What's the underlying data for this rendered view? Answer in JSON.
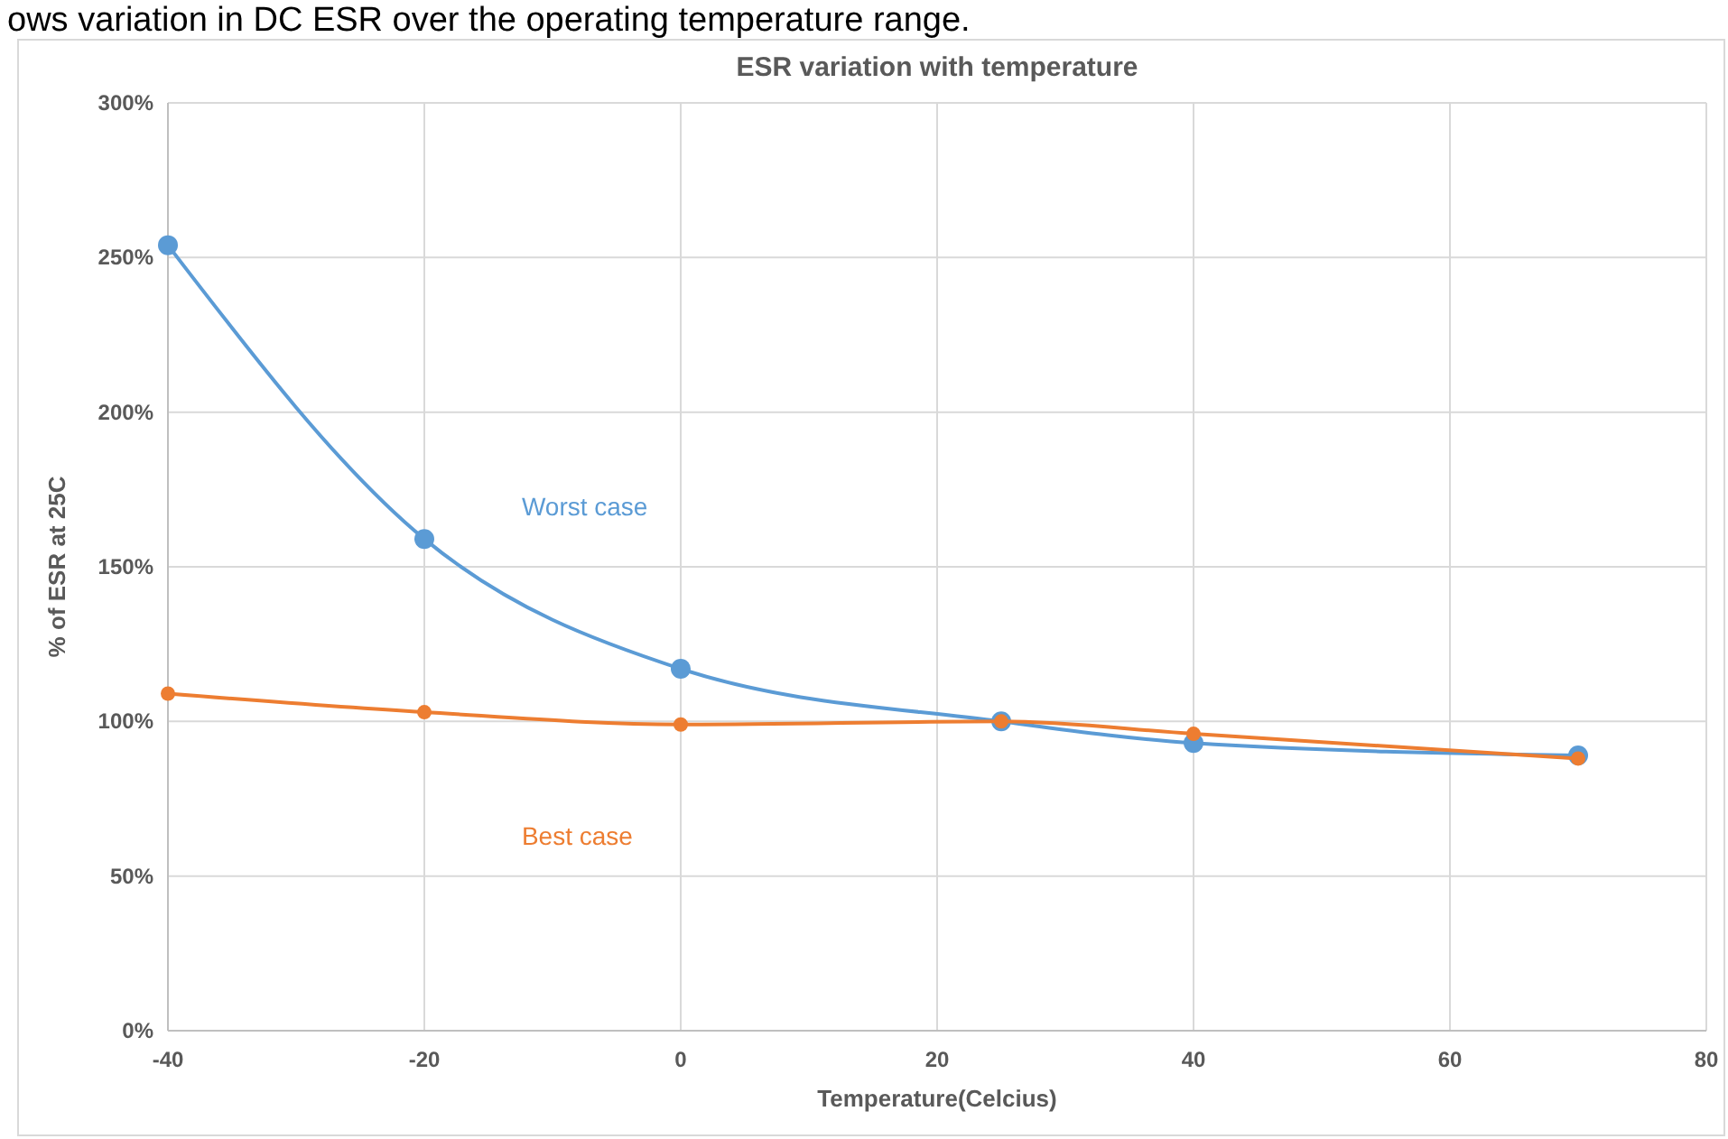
{
  "chart_data": {
    "type": "line",
    "title": "ESR variation with temperature",
    "xlabel": "Temperature(Celcius)",
    "ylabel": "% of ESR at 25C",
    "annotations": [
      "ows variation in DC ESR over the operating temperature range."
    ],
    "x": [
      -40,
      -20,
      0,
      25,
      40,
      70
    ],
    "series": [
      {
        "name": "Worst case",
        "color": "#5b9bd5",
        "values": [
          254,
          159,
          117,
          100,
          93,
          89
        ]
      },
      {
        "name": "Best case",
        "color": "#ed7d31",
        "values": [
          109,
          103,
          99,
          100,
          96,
          88
        ]
      }
    ],
    "xlim": [
      -40,
      80
    ],
    "xticks": [
      -40,
      -20,
      0,
      20,
      40,
      60,
      80
    ],
    "ylim": [
      0,
      300
    ],
    "yticks": [
      {
        "value": 0,
        "label": "0%"
      },
      {
        "value": 50,
        "label": "50%"
      },
      {
        "value": 100,
        "label": "100%"
      },
      {
        "value": 150,
        "label": "150%"
      },
      {
        "value": 200,
        "label": "200%"
      },
      {
        "value": 250,
        "label": "250%"
      },
      {
        "value": 300,
        "label": "300%"
      }
    ],
    "grid": true,
    "marker": "circle",
    "line_style": "solid"
  }
}
